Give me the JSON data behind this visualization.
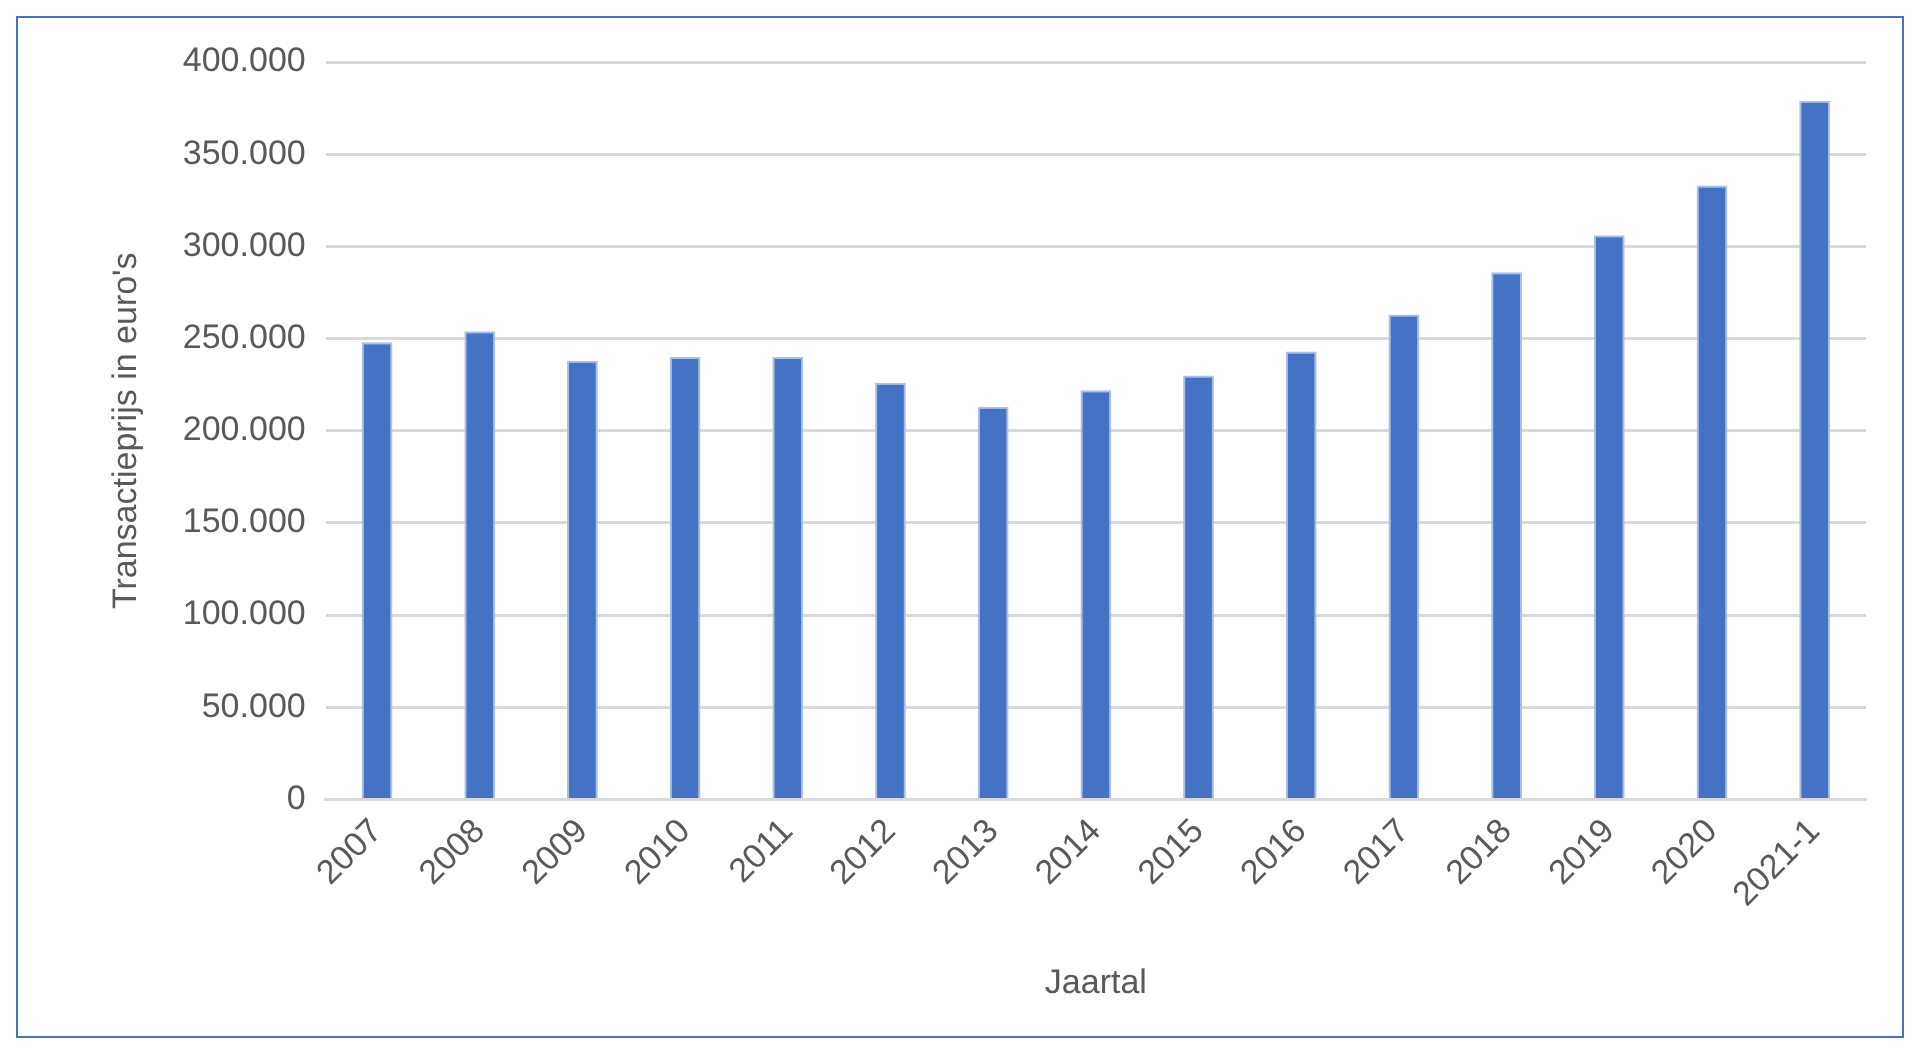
{
  "chart_data": {
    "type": "bar",
    "xlabel": "Jaartal",
    "ylabel": "Transactieprijs in euro's",
    "categories": [
      "2007",
      "2008",
      "2009",
      "2010",
      "2011",
      "2012",
      "2013",
      "2014",
      "2015",
      "2016",
      "2017",
      "2018",
      "2019",
      "2020",
      "2021-1"
    ],
    "values": [
      248000,
      254000,
      238000,
      240000,
      240000,
      226000,
      213000,
      222000,
      230000,
      243000,
      263000,
      286000,
      306000,
      333000,
      379000
    ],
    "color": "#4472c4",
    "ylim": [
      0,
      400000
    ],
    "yticks": [
      0,
      {
        "value": 50000,
        "label": "50.000"
      },
      {
        "value": 100000,
        "label": "100.000"
      },
      {
        "value": 150000,
        "label": "150.000"
      },
      {
        "value": 200000,
        "label": "200.000"
      },
      {
        "value": 250000,
        "label": "250.000"
      },
      {
        "value": 300000,
        "label": "300.000"
      },
      {
        "value": 350000,
        "label": "350.000"
      },
      {
        "value": 400000,
        "label": "400.000"
      }
    ],
    "grid": "y",
    "legend": false
  }
}
